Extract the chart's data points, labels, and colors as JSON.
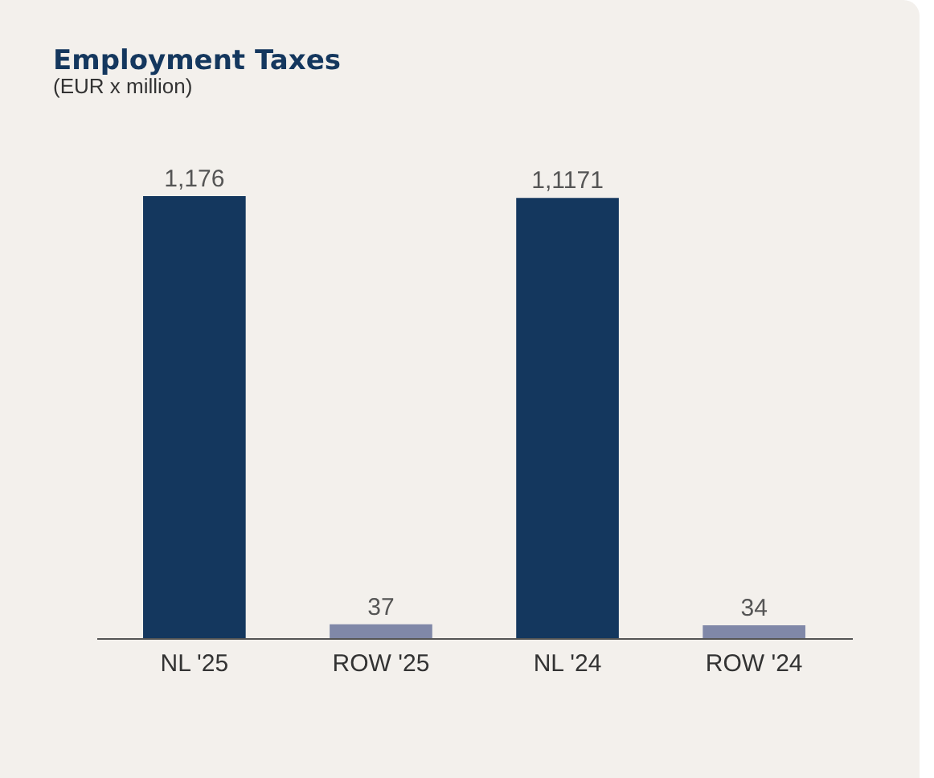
{
  "chart_data": {
    "type": "bar",
    "title": "Employment Taxes",
    "subtitle": "(EUR x million)",
    "categories": [
      "NL '25",
      "ROW '25",
      "NL '24",
      "ROW '24"
    ],
    "values": [
      1176,
      37,
      1171,
      34
    ],
    "colors": [
      "#14375e",
      "#8088a8",
      "#14375e",
      "#8088a8"
    ],
    "value_labels": [
      "1,176",
      "37",
      "1,1171",
      "34"
    ]
  }
}
